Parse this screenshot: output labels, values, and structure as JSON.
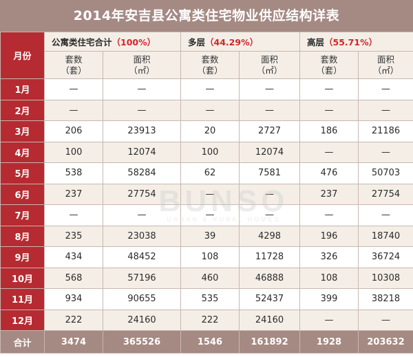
{
  "title": "2014年安吉县公寓类住宅物业供应结构详表",
  "month_header": "月份",
  "groups": [
    {
      "label": "公寓类住宅合计",
      "pct": "（100%）"
    },
    {
      "label": "多层",
      "pct": "（44.29%）"
    },
    {
      "label": "高层",
      "pct": "（55.71%）"
    }
  ],
  "subcols": {
    "count_line1": "套数",
    "count_line2": "（套）",
    "area_line1": "面积",
    "area_line2": "（㎡）"
  },
  "rows": [
    {
      "month": "1月",
      "v": [
        "—",
        "—",
        "—",
        "—",
        "—",
        "—"
      ]
    },
    {
      "month": "2月",
      "v": [
        "—",
        "—",
        "—",
        "—",
        "—",
        "—"
      ]
    },
    {
      "month": "3月",
      "v": [
        "206",
        "23913",
        "20",
        "2727",
        "186",
        "21186"
      ]
    },
    {
      "month": "4月",
      "v": [
        "100",
        "12074",
        "100",
        "12074",
        "—",
        "—"
      ]
    },
    {
      "month": "5月",
      "v": [
        "538",
        "58284",
        "62",
        "7581",
        "476",
        "50703"
      ]
    },
    {
      "month": "6月",
      "v": [
        "237",
        "27754",
        "—",
        "—",
        "237",
        "27754"
      ]
    },
    {
      "month": "7月",
      "v": [
        "—",
        "—",
        "—",
        "—",
        "—",
        "—"
      ]
    },
    {
      "month": "8月",
      "v": [
        "235",
        "23038",
        "39",
        "4298",
        "196",
        "18740"
      ]
    },
    {
      "month": "9月",
      "v": [
        "434",
        "48452",
        "108",
        "11728",
        "326",
        "36724"
      ]
    },
    {
      "month": "10月",
      "v": [
        "568",
        "57196",
        "460",
        "46888",
        "108",
        "10308"
      ]
    },
    {
      "month": "11月",
      "v": [
        "934",
        "90655",
        "535",
        "52437",
        "399",
        "38218"
      ]
    },
    {
      "month": "12月",
      "v": [
        "222",
        "24160",
        "222",
        "24160",
        "—",
        "—"
      ]
    }
  ],
  "total": {
    "label": "合计",
    "v": [
      "3474",
      "365526",
      "1546",
      "161892",
      "1928",
      "203632"
    ]
  },
  "watermark": {
    "main": "BUNSO",
    "sub": "URBAN & RURAL HOMES"
  }
}
